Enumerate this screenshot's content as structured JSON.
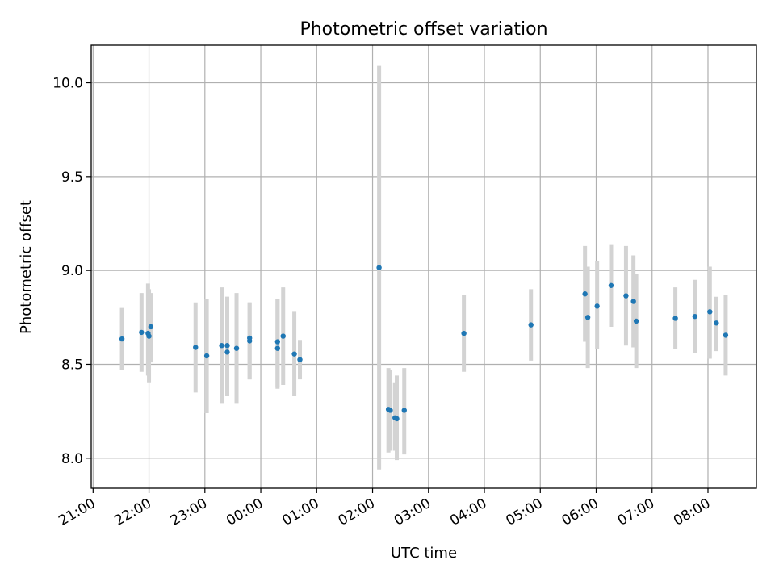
{
  "chart_data": {
    "type": "scatter",
    "title": "Photometric offset variation",
    "xlabel": "UTC time",
    "ylabel": "Photometric offset",
    "x_axis": {
      "kind": "time",
      "min": "20:58",
      "max": "08:52",
      "ticks": [
        "21:00",
        "22:00",
        "23:00",
        "00:00",
        "01:00",
        "02:00",
        "03:00",
        "04:00",
        "05:00",
        "06:00",
        "07:00",
        "08:00"
      ]
    },
    "y_axis": {
      "min": 7.84,
      "max": 10.2,
      "ticks": [
        8.0,
        8.5,
        9.0,
        9.5,
        10.0
      ],
      "tick_labels": [
        "8.0",
        "8.5",
        "9.0",
        "9.5",
        "10.0"
      ]
    },
    "grid": true,
    "marker_color": "#1f77b4",
    "errorbar_color": "#d3d3d3",
    "points": [
      {
        "t": "21:31",
        "y": 8.635,
        "ylo": 8.47,
        "yhi": 8.8
      },
      {
        "t": "21:52",
        "y": 8.67,
        "ylo": 8.46,
        "yhi": 8.88
      },
      {
        "t": "21:59",
        "y": 8.665,
        "ylo": 8.44,
        "yhi": 8.93
      },
      {
        "t": "22:00",
        "y": 8.65,
        "ylo": 8.4,
        "yhi": 8.9
      },
      {
        "t": "22:02",
        "y": 8.7,
        "ylo": 8.51,
        "yhi": 8.88
      },
      {
        "t": "22:50",
        "y": 8.59,
        "ylo": 8.35,
        "yhi": 8.83
      },
      {
        "t": "23:02",
        "y": 8.545,
        "ylo": 8.24,
        "yhi": 8.85
      },
      {
        "t": "23:18",
        "y": 8.6,
        "ylo": 8.29,
        "yhi": 8.91
      },
      {
        "t": "23:24",
        "y": 8.565,
        "ylo": 8.33,
        "yhi": 8.86
      },
      {
        "t": "23:24",
        "y": 8.6,
        "ylo": 8.33,
        "yhi": 8.86
      },
      {
        "t": "23:34",
        "y": 8.585,
        "ylo": 8.29,
        "yhi": 8.88
      },
      {
        "t": "23:48",
        "y": 8.625,
        "ylo": 8.42,
        "yhi": 8.83
      },
      {
        "t": "23:48",
        "y": 8.64,
        "ylo": 8.42,
        "yhi": 8.83
      },
      {
        "t": "00:18",
        "y": 8.62,
        "ylo": 8.38,
        "yhi": 8.85
      },
      {
        "t": "00:18",
        "y": 8.585,
        "ylo": 8.37,
        "yhi": 8.85
      },
      {
        "t": "00:24",
        "y": 8.65,
        "ylo": 8.39,
        "yhi": 8.91
      },
      {
        "t": "00:36",
        "y": 8.555,
        "ylo": 8.33,
        "yhi": 8.78
      },
      {
        "t": "00:42",
        "y": 8.525,
        "ylo": 8.42,
        "yhi": 8.63
      },
      {
        "t": "02:07",
        "y": 9.015,
        "ylo": 7.94,
        "yhi": 10.09
      },
      {
        "t": "02:17",
        "y": 8.26,
        "ylo": 8.03,
        "yhi": 8.48
      },
      {
        "t": "02:19",
        "y": 8.255,
        "ylo": 8.04,
        "yhi": 8.47
      },
      {
        "t": "02:24",
        "y": 8.215,
        "ylo": 8.04,
        "yhi": 8.4
      },
      {
        "t": "02:26",
        "y": 8.21,
        "ylo": 7.99,
        "yhi": 8.44
      },
      {
        "t": "02:34",
        "y": 8.255,
        "ylo": 8.02,
        "yhi": 8.48
      },
      {
        "t": "03:38",
        "y": 8.665,
        "ylo": 8.46,
        "yhi": 8.87
      },
      {
        "t": "04:50",
        "y": 8.71,
        "ylo": 8.52,
        "yhi": 8.9
      },
      {
        "t": "05:48",
        "y": 8.875,
        "ylo": 8.62,
        "yhi": 9.13
      },
      {
        "t": "05:51",
        "y": 8.75,
        "ylo": 8.48,
        "yhi": 9.02
      },
      {
        "t": "06:01",
        "y": 8.81,
        "ylo": 8.58,
        "yhi": 9.05
      },
      {
        "t": "06:16",
        "y": 8.92,
        "ylo": 8.7,
        "yhi": 9.14
      },
      {
        "t": "06:32",
        "y": 8.865,
        "ylo": 8.6,
        "yhi": 9.13
      },
      {
        "t": "06:40",
        "y": 8.835,
        "ylo": 8.59,
        "yhi": 9.08
      },
      {
        "t": "06:43",
        "y": 8.73,
        "ylo": 8.48,
        "yhi": 8.98
      },
      {
        "t": "07:25",
        "y": 8.745,
        "ylo": 8.58,
        "yhi": 8.91
      },
      {
        "t": "07:46",
        "y": 8.755,
        "ylo": 8.56,
        "yhi": 8.95
      },
      {
        "t": "08:02",
        "y": 8.78,
        "ylo": 8.53,
        "yhi": 9.02
      },
      {
        "t": "08:09",
        "y": 8.72,
        "ylo": 8.57,
        "yhi": 8.86
      },
      {
        "t": "08:19",
        "y": 8.655,
        "ylo": 8.44,
        "yhi": 8.87
      }
    ]
  }
}
